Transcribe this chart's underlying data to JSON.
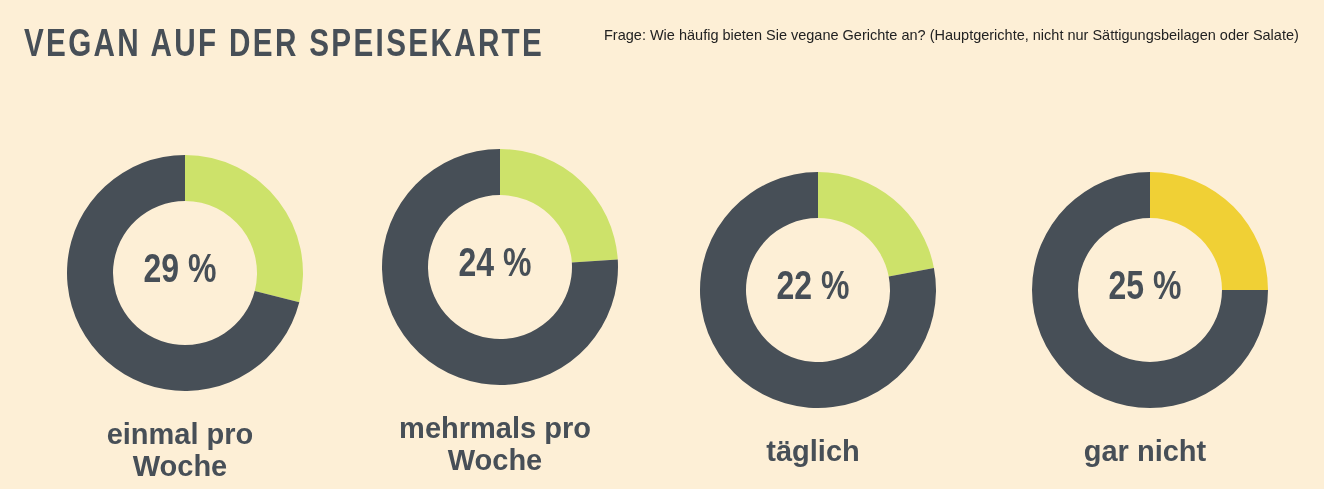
{
  "chart_data": [
    {
      "type": "other",
      "title": "VEGAN AUF DER SPEISEKARTE",
      "subtitle": "Frage: Wie häufig bieten Sie vegane Gerichte an? (Hauptgerichte, nicht nur Sättigungsbeilagen oder Salate)"
    },
    {
      "type": "donut",
      "title": "einmal pro Woche",
      "categories": [
        null,
        null
      ],
      "values": [
        29,
        71
      ],
      "colors": [
        "#cde26a",
        "#474f57"
      ],
      "annotations": [
        "29 %"
      ]
    },
    {
      "type": "donut",
      "title": "mehrmals pro Woche",
      "categories": [
        null,
        null
      ],
      "values": [
        24,
        76
      ],
      "colors": [
        "#cde26a",
        "#474f57"
      ],
      "annotations": [
        "24 %"
      ]
    },
    {
      "type": "donut",
      "title": "täglich",
      "categories": [
        null,
        null
      ],
      "values": [
        22,
        78
      ],
      "colors": [
        "#cde26a",
        "#474f57"
      ],
      "annotations": [
        "22 %"
      ]
    },
    {
      "type": "donut",
      "title": "gar nicht",
      "categories": [
        null,
        null
      ],
      "values": [
        25,
        75
      ],
      "colors": [
        "#f0d035",
        "#474f57"
      ],
      "annotations": [
        "25 %"
      ]
    }
  ]
}
